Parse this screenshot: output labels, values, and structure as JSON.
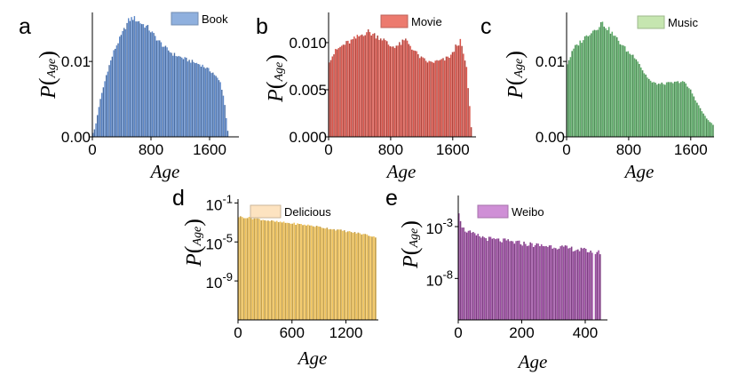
{
  "colors": {
    "book": "#5a86c8",
    "movie": "#d9544a",
    "music": "#5fae6a",
    "delicious": "#f2c45a",
    "weibo": "#9a4aa0",
    "book_legend": "#8fb0de",
    "movie_legend": "#ec7a6e",
    "music_legend": "#c6e6b0",
    "delicious_legend": "#fde3c0",
    "weibo_legend": "#cf8fd6"
  },
  "chart_data": [
    {
      "panel": "a",
      "type": "bar",
      "legend": "Book",
      "color_key": "book",
      "legend_color_key": "book_legend",
      "xlabel": "Age",
      "ylabel": "P(Age)",
      "ylabel_main": "P",
      "ylabel_sub": "Age",
      "xlim": [
        0,
        2000
      ],
      "ylim": [
        0,
        0.0165
      ],
      "scale": "linear",
      "xticks": [
        0,
        800,
        1600
      ],
      "xtick_labels": [
        "0",
        "800",
        "1600"
      ],
      "yticks": [
        0,
        0.01
      ],
      "ytick_labels": [
        "0.00",
        "0.01"
      ],
      "profile": [
        [
          0,
          0.0003
        ],
        [
          40,
          0.0012
        ],
        [
          100,
          0.0045
        ],
        [
          200,
          0.0085
        ],
        [
          300,
          0.0115
        ],
        [
          400,
          0.0135
        ],
        [
          500,
          0.0155
        ],
        [
          560,
          0.0158
        ],
        [
          650,
          0.0152
        ],
        [
          760,
          0.0145
        ],
        [
          900,
          0.0128
        ],
        [
          1000,
          0.0118
        ],
        [
          1100,
          0.011
        ],
        [
          1300,
          0.0102
        ],
        [
          1500,
          0.0095
        ],
        [
          1650,
          0.0085
        ],
        [
          1750,
          0.0072
        ],
        [
          1800,
          0.005
        ],
        [
          1830,
          0.0025
        ],
        [
          1850,
          0.0008
        ],
        [
          1860,
          0.0
        ]
      ]
    },
    {
      "panel": "b",
      "type": "bar",
      "legend": "Movie",
      "color_key": "movie",
      "legend_color_key": "movie_legend",
      "xlabel": "Age",
      "ylabel": "P(Age)",
      "ylabel_main": "P",
      "ylabel_sub": "Age",
      "xlim": [
        0,
        1900
      ],
      "ylim": [
        0,
        0.0132
      ],
      "scale": "linear",
      "xticks": [
        0,
        800,
        1600
      ],
      "xtick_labels": [
        "0",
        "800",
        "1600"
      ],
      "yticks": [
        0,
        0.005,
        0.01
      ],
      "ytick_labels": [
        "0.000",
        "0.005",
        "0.010"
      ],
      "profile": [
        [
          0,
          0.008
        ],
        [
          100,
          0.0092
        ],
        [
          200,
          0.0098
        ],
        [
          300,
          0.0102
        ],
        [
          400,
          0.0107
        ],
        [
          500,
          0.0112
        ],
        [
          600,
          0.0108
        ],
        [
          700,
          0.0104
        ],
        [
          800,
          0.0096
        ],
        [
          900,
          0.0097
        ],
        [
          1000,
          0.0103
        ],
        [
          1100,
          0.0092
        ],
        [
          1200,
          0.0083
        ],
        [
          1300,
          0.0079
        ],
        [
          1400,
          0.008
        ],
        [
          1500,
          0.0082
        ],
        [
          1600,
          0.0088
        ],
        [
          1650,
          0.0098
        ],
        [
          1700,
          0.0101
        ],
        [
          1740,
          0.0088
        ],
        [
          1780,
          0.0072
        ],
        [
          1820,
          0.0032
        ],
        [
          1840,
          0.001
        ],
        [
          1850,
          0.0
        ]
      ]
    },
    {
      "panel": "c",
      "type": "bar",
      "legend": "Music",
      "color_key": "music",
      "legend_color_key": "music_legend",
      "xlabel": "Age",
      "ylabel": "P(Age)",
      "ylabel_main": "P",
      "ylabel_sub": "Age",
      "xlim": [
        0,
        1900
      ],
      "ylim": [
        0,
        0.0165
      ],
      "scale": "linear",
      "xticks": [
        0,
        800,
        1600
      ],
      "xtick_labels": [
        "0",
        "800",
        "1600"
      ],
      "yticks": [
        0,
        0.01
      ],
      "ytick_labels": [
        "0.00",
        "0.01"
      ],
      "profile": [
        [
          0,
          0.0095
        ],
        [
          100,
          0.0118
        ],
        [
          200,
          0.0128
        ],
        [
          300,
          0.0138
        ],
        [
          400,
          0.0145
        ],
        [
          450,
          0.0152
        ],
        [
          550,
          0.0142
        ],
        [
          650,
          0.013
        ],
        [
          800,
          0.0112
        ],
        [
          900,
          0.0105
        ],
        [
          1000,
          0.0085
        ],
        [
          1100,
          0.0072
        ],
        [
          1200,
          0.007
        ],
        [
          1400,
          0.0072
        ],
        [
          1500,
          0.0074
        ],
        [
          1600,
          0.0062
        ],
        [
          1700,
          0.0042
        ],
        [
          1800,
          0.0025
        ],
        [
          1900,
          0.0015
        ]
      ]
    },
    {
      "panel": "d",
      "type": "bar",
      "legend": "Delicious",
      "color_key": "delicious",
      "legend_color_key": "delicious_legend",
      "xlabel": "Age",
      "ylabel": "P(Age)",
      "ylabel_main": "P",
      "ylabel_sub": "Age",
      "xlim": [
        0,
        1560
      ],
      "ylim_log10": [
        -13,
        -0.6
      ],
      "scale": "log",
      "xticks": [
        0,
        600,
        1200
      ],
      "xtick_labels": [
        "0",
        "600",
        "1200"
      ],
      "yticks_log10": [
        -1,
        -5,
        -9
      ],
      "ytick_bases": [
        "10",
        "10",
        "10"
      ],
      "ytick_exponents": [
        "-1",
        "-5",
        "-9"
      ],
      "profile_log10": [
        [
          0,
          -2.4
        ],
        [
          200,
          -2.6
        ],
        [
          400,
          -2.9
        ],
        [
          600,
          -3.1
        ],
        [
          800,
          -3.3
        ],
        [
          1000,
          -3.6
        ],
        [
          1200,
          -3.9
        ],
        [
          1400,
          -4.2
        ],
        [
          1540,
          -4.5
        ]
      ]
    },
    {
      "panel": "e",
      "type": "bar",
      "legend": "Weibo",
      "color_key": "weibo",
      "legend_color_key": "weibo_legend",
      "xlabel": "Age",
      "ylabel": "P(Age)",
      "ylabel_main": "P",
      "ylabel_sub": "Age",
      "xlim": [
        0,
        470
      ],
      "ylim_log10": [
        -12,
        0
      ],
      "scale": "log",
      "xticks": [
        0,
        200,
        400
      ],
      "xtick_labels": [
        "0",
        "200",
        "400"
      ],
      "yticks_log10": [
        -3,
        -8
      ],
      "ytick_bases": [
        "10",
        "10"
      ],
      "ytick_exponents": [
        "-3",
        "-8"
      ],
      "profile_log10": [
        [
          0,
          -1.0
        ],
        [
          5,
          -2.0
        ],
        [
          15,
          -3.2
        ],
        [
          50,
          -3.8
        ],
        [
          100,
          -4.2
        ],
        [
          150,
          -4.4
        ],
        [
          200,
          -4.6
        ],
        [
          250,
          -4.8
        ],
        [
          300,
          -4.9
        ],
        [
          350,
          -5.1
        ],
        [
          400,
          -5.3
        ],
        [
          450,
          -5.5
        ]
      ],
      "gaps": [
        [
          423,
          430
        ]
      ]
    }
  ]
}
